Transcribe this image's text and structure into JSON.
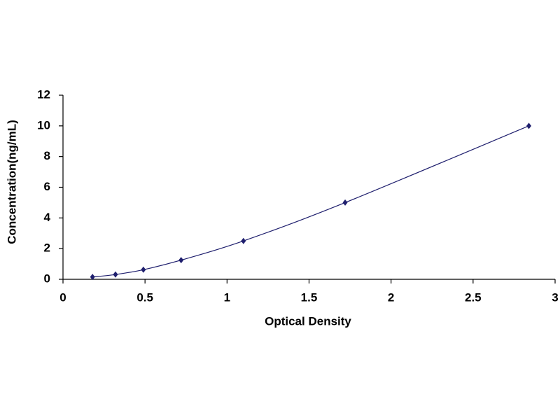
{
  "chart_data": {
    "type": "scatter",
    "xlabel": "Optical Density",
    "ylabel": "Concentration(ng/mL)",
    "x": [
      0.18,
      0.32,
      0.49,
      0.72,
      1.1,
      1.72,
      2.84
    ],
    "values": [
      0.156,
      0.312,
      0.625,
      1.25,
      2.5,
      5,
      10
    ],
    "color": "#1f1f6e",
    "smooth_line": true,
    "xlim": [
      0,
      3
    ],
    "xticks": [
      0,
      0.5,
      1,
      1.5,
      2,
      2.5,
      3
    ],
    "ylim": [
      0,
      12
    ],
    "yticks": [
      0,
      2,
      4,
      6,
      8,
      10,
      12
    ],
    "grid": false
  }
}
